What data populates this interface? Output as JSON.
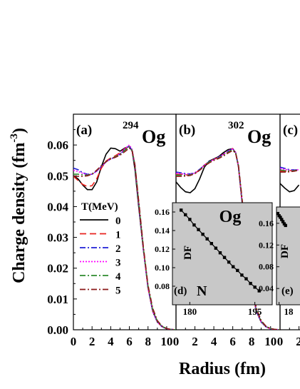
{
  "chart_data": [
    {
      "panel_label": "(a)",
      "nucleus": {
        "mass_number": "294",
        "symbol": "Og"
      },
      "type": "line",
      "xlabel": "Radius (fm)",
      "ylabel": "Charge density (fm",
      "ylabel_exponent": "-3",
      "ylabel_close": ")",
      "xlim": [
        0,
        11
      ],
      "ylim": [
        0.0,
        0.07
      ],
      "xticks": [
        "0",
        "2",
        "4",
        "6",
        "8",
        "10"
      ],
      "yticks": [
        "0.00",
        "0.01",
        "0.02",
        "0.03",
        "0.04",
        "0.05",
        "0.06"
      ],
      "legend": {
        "title": "T(MeV)",
        "entries": [
          "0",
          "1",
          "2",
          "3",
          "4",
          "5"
        ]
      },
      "series": [
        {
          "name": "0",
          "color": "#000000",
          "dash": "solid",
          "x": [
            0,
            0.5,
            1,
            1.5,
            2,
            2.5,
            3,
            3.5,
            4,
            4.5,
            5,
            5.5,
            6,
            6.3,
            6.6,
            7,
            7.5,
            8,
            8.5,
            9,
            9.5,
            10,
            10.5,
            11
          ],
          "y": [
            0.05,
            0.049,
            0.047,
            0.0455,
            0.0455,
            0.048,
            0.053,
            0.057,
            0.059,
            0.0588,
            0.058,
            0.059,
            0.0595,
            0.058,
            0.052,
            0.04,
            0.026,
            0.014,
            0.006,
            0.0025,
            0.001,
            0.0003,
            0.0001,
            0.0
          ]
        },
        {
          "name": "1",
          "color": "#e8231f",
          "dash": "long-dash",
          "x": [
            0,
            0.5,
            1,
            1.5,
            2,
            2.5,
            3,
            3.5,
            4,
            4.5,
            5,
            5.5,
            6,
            6.3,
            6.6,
            7,
            7.5,
            8,
            8.5,
            9,
            9.5,
            10,
            10.5,
            11
          ],
          "y": [
            0.0498,
            0.0485,
            0.0472,
            0.0465,
            0.0468,
            0.049,
            0.0525,
            0.0548,
            0.0558,
            0.0565,
            0.0575,
            0.0588,
            0.0595,
            0.058,
            0.053,
            0.041,
            0.026,
            0.0135,
            0.006,
            0.0025,
            0.001,
            0.0003,
            0.0001,
            0.0
          ]
        },
        {
          "name": "2",
          "color": "#1f1fd6",
          "dash": "dash-dot",
          "x": [
            0,
            0.5,
            1,
            1.5,
            2,
            2.5,
            3,
            3.5,
            4,
            4.5,
            5,
            5.5,
            6,
            6.3,
            6.6,
            7,
            7.5,
            8,
            8.5,
            9,
            9.5,
            10,
            10.5,
            11
          ],
          "y": [
            0.0525,
            0.052,
            0.051,
            0.0505,
            0.0505,
            0.0515,
            0.053,
            0.0545,
            0.0555,
            0.056,
            0.057,
            0.0585,
            0.0598,
            0.058,
            0.053,
            0.041,
            0.026,
            0.0135,
            0.006,
            0.0025,
            0.001,
            0.0003,
            0.0001,
            0.0
          ]
        },
        {
          "name": "3",
          "color": "#ff00ff",
          "dash": "dot",
          "x": [
            0,
            0.5,
            1,
            1.5,
            2,
            2.5,
            3,
            3.5,
            4,
            4.5,
            5,
            5.5,
            6,
            6.3,
            6.6,
            7,
            7.5,
            8,
            8.5,
            9,
            9.5,
            10,
            10.5,
            11
          ],
          "y": [
            0.0518,
            0.0514,
            0.0508,
            0.0504,
            0.0505,
            0.0515,
            0.053,
            0.0545,
            0.0555,
            0.0562,
            0.0572,
            0.0588,
            0.06,
            0.0585,
            0.0535,
            0.0412,
            0.026,
            0.0135,
            0.006,
            0.0025,
            0.001,
            0.0003,
            0.0001,
            0.0
          ]
        },
        {
          "name": "4",
          "color": "#2e8b2e",
          "dash": "dash-dot",
          "x": [
            0,
            0.5,
            1,
            1.5,
            2,
            2.5,
            3,
            3.5,
            4,
            4.5,
            5,
            5.5,
            6,
            6.3,
            6.6,
            7,
            7.5,
            8,
            8.5,
            9,
            9.5,
            10,
            10.5,
            11
          ],
          "y": [
            0.0505,
            0.0505,
            0.0503,
            0.0502,
            0.0506,
            0.0518,
            0.0532,
            0.0546,
            0.0556,
            0.0562,
            0.057,
            0.0583,
            0.0595,
            0.0582,
            0.0535,
            0.0415,
            0.0265,
            0.014,
            0.0065,
            0.0028,
            0.0011,
            0.0004,
            0.0001,
            0.0
          ]
        },
        {
          "name": "5",
          "color": "#8b1a1a",
          "dash": "dash-dot",
          "x": [
            0,
            0.5,
            1,
            1.5,
            2,
            2.5,
            3,
            3.5,
            4,
            4.5,
            5,
            5.5,
            6,
            6.3,
            6.6,
            7,
            7.5,
            8,
            8.5,
            9,
            9.5,
            10,
            10.5,
            11
          ],
          "y": [
            0.0498,
            0.0498,
            0.0498,
            0.05,
            0.0505,
            0.0518,
            0.0533,
            0.0546,
            0.0555,
            0.056,
            0.0567,
            0.0578,
            0.059,
            0.058,
            0.0535,
            0.042,
            0.027,
            0.0145,
            0.007,
            0.003,
            0.0012,
            0.0004,
            0.0001,
            0.0
          ]
        }
      ]
    },
    {
      "panel_label": "(b)",
      "nucleus": {
        "mass_number": "302",
        "symbol": "Og"
      },
      "type": "line",
      "xlim": [
        0,
        11
      ],
      "ylim": [
        0.0,
        0.07
      ],
      "xticks": [
        "0",
        "2",
        "4",
        "6",
        "8",
        "10"
      ],
      "series": [
        {
          "name": "0",
          "color": "#000000",
          "dash": "solid",
          "x": [
            0,
            0.5,
            1,
            1.5,
            2,
            2.5,
            3,
            3.5,
            4,
            4.5,
            5,
            5.5,
            6,
            6.3,
            6.6,
            7,
            7.5,
            8,
            8.5,
            9,
            9.5,
            10,
            10.5,
            11
          ],
          "y": [
            0.048,
            0.0462,
            0.0448,
            0.0445,
            0.0458,
            0.049,
            0.0528,
            0.0548,
            0.0555,
            0.0562,
            0.0575,
            0.0585,
            0.0588,
            0.0575,
            0.053,
            0.041,
            0.026,
            0.0135,
            0.006,
            0.0025,
            0.001,
            0.0003,
            0.0001,
            0.0
          ]
        },
        {
          "name": "1",
          "color": "#e8231f",
          "dash": "long-dash",
          "x": [
            0,
            0.5,
            1,
            1.5,
            2,
            2.5,
            3,
            3.5,
            4,
            4.5,
            5,
            5.5,
            6,
            6.3,
            6.6,
            7,
            7.5,
            8,
            8.5,
            9,
            9.5,
            10,
            10.5,
            11
          ],
          "y": [
            0.0505,
            0.0505,
            0.0503,
            0.0502,
            0.0507,
            0.052,
            0.0535,
            0.0546,
            0.0553,
            0.056,
            0.057,
            0.058,
            0.0588,
            0.0575,
            0.053,
            0.041,
            0.026,
            0.0135,
            0.006,
            0.0025,
            0.001,
            0.0003,
            0.0001,
            0.0
          ]
        },
        {
          "name": "2",
          "color": "#1f1fd6",
          "dash": "dash-dot",
          "x": [
            0,
            0.5,
            1,
            1.5,
            2,
            2.5,
            3,
            3.5,
            4,
            4.5,
            5,
            5.5,
            6,
            6.3,
            6.6,
            7,
            7.5,
            8,
            8.5,
            9,
            9.5,
            10,
            10.5,
            11
          ],
          "y": [
            0.0512,
            0.051,
            0.0507,
            0.0506,
            0.051,
            0.0521,
            0.0535,
            0.0546,
            0.0553,
            0.056,
            0.057,
            0.058,
            0.0588,
            0.0576,
            0.0532,
            0.0412,
            0.026,
            0.0135,
            0.006,
            0.0025,
            0.001,
            0.0003,
            0.0001,
            0.0
          ]
        },
        {
          "name": "3",
          "color": "#ff00ff",
          "dash": "dot",
          "x": [
            0,
            0.5,
            1,
            1.5,
            2,
            2.5,
            3,
            3.5,
            4,
            4.5,
            5,
            5.5,
            6,
            6.3,
            6.6,
            7,
            7.5,
            8,
            8.5,
            9,
            9.5,
            10,
            10.5,
            11
          ],
          "y": [
            0.0508,
            0.0507,
            0.0505,
            0.0505,
            0.0509,
            0.052,
            0.0534,
            0.0545,
            0.0553,
            0.056,
            0.057,
            0.058,
            0.0588,
            0.0577,
            0.0533,
            0.0414,
            0.0262,
            0.0137,
            0.0062,
            0.0026,
            0.001,
            0.0003,
            0.0001,
            0.0
          ]
        },
        {
          "name": "4",
          "color": "#2e8b2e",
          "dash": "dash-dot",
          "x": [
            0,
            0.5,
            1,
            1.5,
            2,
            2.5,
            3,
            3.5,
            4,
            4.5,
            5,
            5.5,
            6,
            6.3,
            6.6,
            7,
            7.5,
            8,
            8.5,
            9,
            9.5,
            10,
            10.5,
            11
          ],
          "y": [
            0.0502,
            0.0502,
            0.0502,
            0.0503,
            0.0508,
            0.0519,
            0.0533,
            0.0545,
            0.0552,
            0.0558,
            0.0567,
            0.0577,
            0.0585,
            0.0575,
            0.0534,
            0.0418,
            0.0267,
            0.0142,
            0.0066,
            0.0028,
            0.0011,
            0.0004,
            0.0001,
            0.0
          ]
        },
        {
          "name": "5",
          "color": "#8b1a1a",
          "dash": "dash-dot",
          "x": [
            0,
            0.5,
            1,
            1.5,
            2,
            2.5,
            3,
            3.5,
            4,
            4.5,
            5,
            5.5,
            6,
            6.3,
            6.6,
            7,
            7.5,
            8,
            8.5,
            9,
            9.5,
            10,
            10.5,
            11
          ],
          "y": [
            0.0498,
            0.0498,
            0.0499,
            0.0501,
            0.0507,
            0.0518,
            0.0531,
            0.0542,
            0.055,
            0.0556,
            0.0564,
            0.0574,
            0.0582,
            0.0574,
            0.0535,
            0.0422,
            0.0272,
            0.0147,
            0.007,
            0.003,
            0.0012,
            0.0004,
            0.0001,
            0.0
          ]
        }
      ]
    },
    {
      "panel_label": "(c)",
      "type": "line",
      "xlim": [
        0,
        11
      ],
      "ylim": [
        0.0,
        0.07
      ],
      "xticks": [
        "0",
        "2"
      ],
      "series": [
        {
          "name": "0",
          "color": "#000000",
          "dash": "solid",
          "x": [
            0,
            0.5,
            1,
            1.5,
            2
          ],
          "y": [
            0.0475,
            0.046,
            0.0448,
            0.0452,
            0.047
          ]
        },
        {
          "name": "1",
          "color": "#e8231f",
          "dash": "long-dash",
          "x": [
            0,
            0.5,
            1,
            1.5,
            2
          ],
          "y": [
            0.0515,
            0.0515,
            0.0516,
            0.0518,
            0.052
          ]
        },
        {
          "name": "2",
          "color": "#1f1fd6",
          "dash": "dash-dot",
          "x": [
            0,
            0.5,
            1,
            1.5,
            2
          ],
          "y": [
            0.0528,
            0.0524,
            0.052,
            0.0519,
            0.052
          ]
        },
        {
          "name": "3",
          "color": "#ff00ff",
          "dash": "dot",
          "x": [
            0,
            0.5,
            1,
            1.5,
            2
          ],
          "y": [
            0.0524,
            0.0521,
            0.0518,
            0.0518,
            0.052
          ]
        },
        {
          "name": "4",
          "color": "#2e8b2e",
          "dash": "dash-dot",
          "x": [
            0,
            0.5,
            1,
            1.5,
            2
          ],
          "y": [
            0.0519,
            0.0517,
            0.0516,
            0.0517,
            0.0519
          ]
        },
        {
          "name": "5",
          "color": "#8b1a1a",
          "dash": "dash-dot",
          "x": [
            0,
            0.5,
            1,
            1.5,
            2
          ],
          "y": [
            0.0512,
            0.0512,
            0.0513,
            0.0515,
            0.0518
          ]
        }
      ]
    },
    {
      "panel_label": "(d)",
      "type": "line",
      "inset": true,
      "title": "Og",
      "xlabel": "N",
      "ylabel": "DF",
      "xlim": [
        176,
        199
      ],
      "ylim": [
        0.06,
        0.17
      ],
      "xticks": [
        "180",
        "195"
      ],
      "yticks": [
        "0.08",
        "0.10",
        "0.12",
        "0.14",
        "0.16"
      ],
      "series": [
        {
          "name": "DF",
          "color": "#000000",
          "marker": "square",
          "x": [
            178,
            179,
            180,
            181,
            182,
            183,
            184,
            185,
            186,
            187,
            188,
            189,
            190,
            191,
            192,
            193,
            194,
            195,
            196
          ],
          "y": [
            0.162,
            0.157,
            0.152,
            0.146,
            0.141,
            0.136,
            0.131,
            0.126,
            0.121,
            0.116,
            0.111,
            0.106,
            0.101,
            0.097,
            0.092,
            0.088,
            0.083,
            0.079,
            0.075
          ]
        }
      ]
    },
    {
      "panel_label": "(e)",
      "type": "line",
      "inset": true,
      "ylabel": "DF",
      "xlim": [
        178,
        200
      ],
      "ylim": [
        0.01,
        0.19
      ],
      "xticks": [
        "18"
      ],
      "yticks": [
        "0.04",
        "0.08",
        "0.12",
        "0.16"
      ],
      "series": [
        {
          "name": "DF",
          "color": "#000000",
          "marker": "square",
          "x": [
            179,
            180,
            181,
            182,
            183,
            184,
            185
          ],
          "y": [
            0.178,
            0.174,
            0.171,
            0.167,
            0.163,
            0.159,
            0.156
          ]
        }
      ]
    }
  ]
}
